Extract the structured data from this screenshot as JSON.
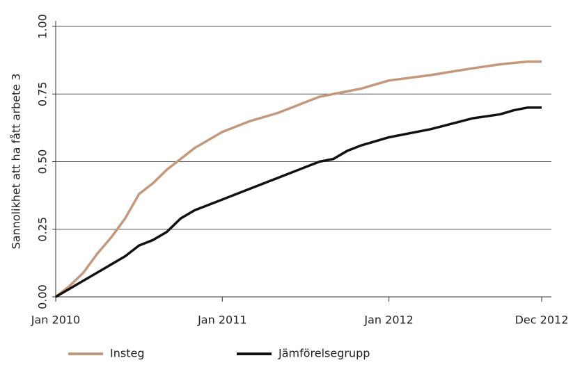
{
  "chart_data": {
    "type": "line",
    "ylabel": "Sannolikhet att ha fått arbete 3",
    "x": [
      0,
      1,
      2,
      3,
      4,
      5,
      6,
      7,
      8,
      9,
      10,
      11,
      12,
      14,
      16,
      18,
      19,
      20,
      21,
      22,
      24,
      27,
      30,
      32,
      33,
      34,
      35
    ],
    "series": [
      {
        "name": "Insteg",
        "color": "#c4987c",
        "values": [
          0,
          0.04,
          0.09,
          0.16,
          0.22,
          0.29,
          0.38,
          0.42,
          0.47,
          0.51,
          0.55,
          0.58,
          0.61,
          0.65,
          0.68,
          0.72,
          0.74,
          0.75,
          0.76,
          0.77,
          0.8,
          0.82,
          0.845,
          0.86,
          0.865,
          0.87,
          0.87
        ]
      },
      {
        "name": "Jämförelsegrupp",
        "color": "#111111",
        "values": [
          0,
          0.03,
          0.06,
          0.09,
          0.12,
          0.15,
          0.19,
          0.21,
          0.24,
          0.29,
          0.32,
          0.34,
          0.36,
          0.4,
          0.44,
          0.48,
          0.5,
          0.51,
          0.54,
          0.56,
          0.59,
          0.62,
          0.66,
          0.675,
          0.69,
          0.7,
          0.7
        ]
      }
    ],
    "xlim": [
      0,
      35
    ],
    "xticks": [
      {
        "value": 0,
        "label": "Jan 2010"
      },
      {
        "value": 12,
        "label": "Jan 2011"
      },
      {
        "value": 24,
        "label": "Jan 2012"
      },
      {
        "value": 35,
        "label": "Dec 2012"
      }
    ],
    "ylim": [
      0,
      1
    ],
    "yticks": [
      {
        "value": 0,
        "label": "0.00"
      },
      {
        "value": 0.25,
        "label": "0.25"
      },
      {
        "value": 0.5,
        "label": "0.50"
      },
      {
        "value": 0.75,
        "label": "0.75"
      },
      {
        "value": 1,
        "label": "1.00"
      }
    ],
    "grid": true,
    "legend": "bottom"
  }
}
